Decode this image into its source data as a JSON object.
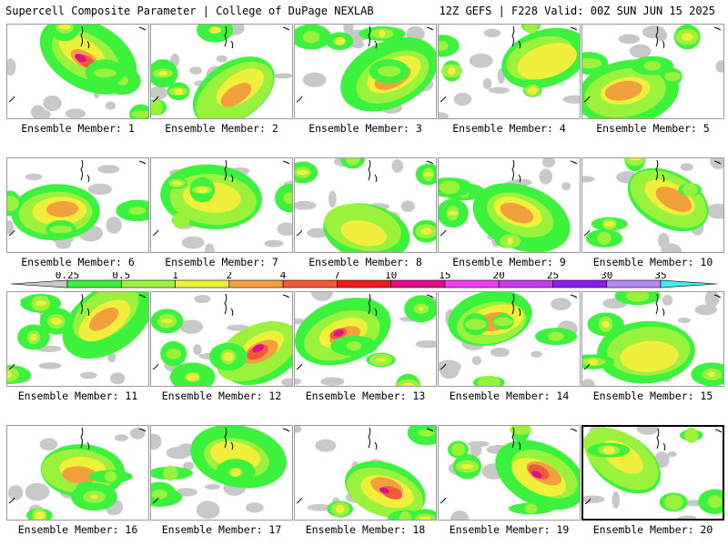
{
  "header": {
    "title": "Supercell Composite Parameter | College of DuPage NEXLAB",
    "run_info": "12Z GEFS | F228 Valid: 00Z SUN JUN 15 2025"
  },
  "label_prefix": "Ensemble Member: ",
  "members": [
    {
      "number": "1",
      "intensity": "high"
    },
    {
      "number": "2",
      "intensity": "moderate"
    },
    {
      "number": "3",
      "intensity": "moderate"
    },
    {
      "number": "4",
      "intensity": "low"
    },
    {
      "number": "5",
      "intensity": "moderate"
    },
    {
      "number": "6",
      "intensity": "moderate"
    },
    {
      "number": "7",
      "intensity": "low"
    },
    {
      "number": "8",
      "intensity": "low"
    },
    {
      "number": "9",
      "intensity": "moderate"
    },
    {
      "number": "10",
      "intensity": "moderate"
    },
    {
      "number": "11",
      "intensity": "moderate"
    },
    {
      "number": "12",
      "intensity": "high"
    },
    {
      "number": "13",
      "intensity": "high"
    },
    {
      "number": "14",
      "intensity": "moderate"
    },
    {
      "number": "15",
      "intensity": "low"
    },
    {
      "number": "16",
      "intensity": "moderate"
    },
    {
      "number": "17",
      "intensity": "low"
    },
    {
      "number": "18",
      "intensity": "high"
    },
    {
      "number": "19",
      "intensity": "high"
    },
    {
      "number": "20",
      "intensity": "low"
    }
  ],
  "colorbar": {
    "ticks": [
      "0.25",
      "0.5",
      "1",
      "2",
      "4",
      "7",
      "10",
      "15",
      "20",
      "25",
      "30",
      "35"
    ],
    "colors": [
      "#c8c8c8",
      "#3cf23c",
      "#9bf23c",
      "#f0f03c",
      "#f0a03c",
      "#f05a3c",
      "#f01c1c",
      "#e0108a",
      "#f03cf0",
      "#c83cf0",
      "#8a1cf0",
      "#b48af0",
      "#3cf0f0"
    ]
  }
}
